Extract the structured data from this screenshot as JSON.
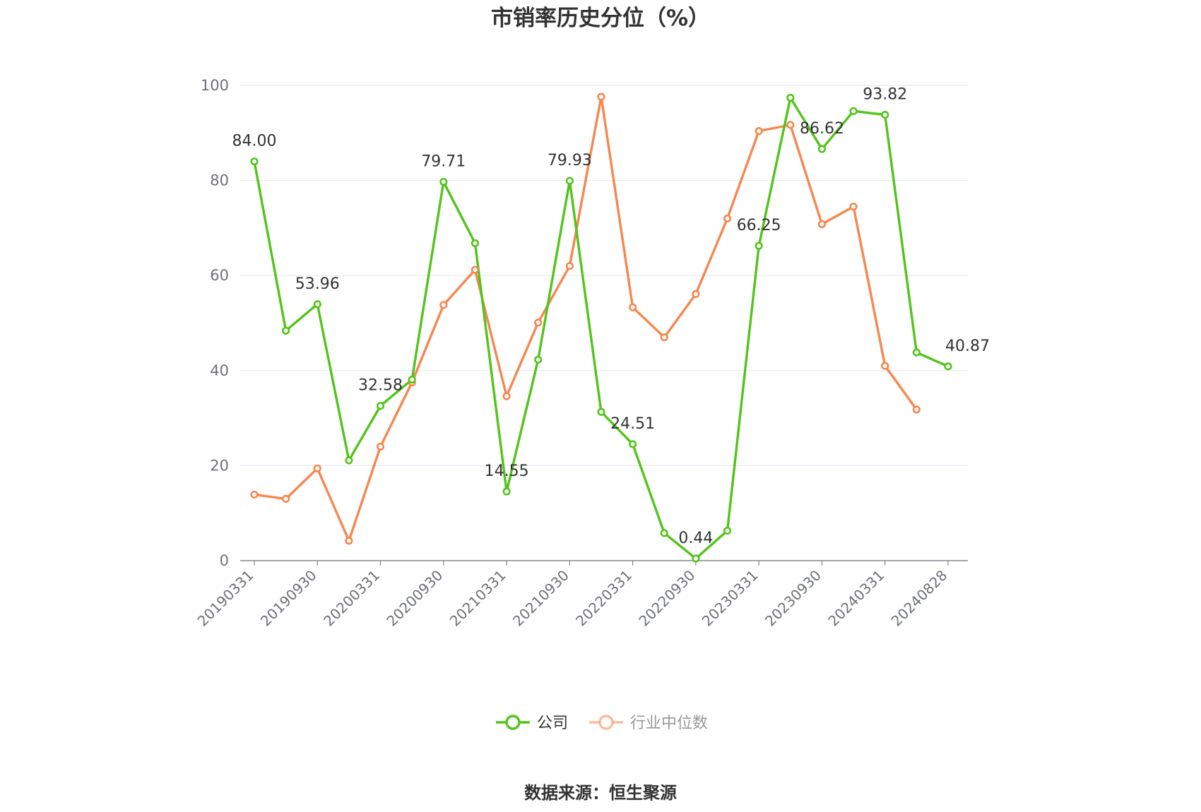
{
  "chart_data": {
    "type": "line",
    "title": "市销率历史分位（%）",
    "xlabel": "",
    "ylabel": "",
    "ylim": [
      0,
      100
    ],
    "yticks": [
      0,
      20,
      40,
      60,
      80,
      100
    ],
    "x": [
      "20190331",
      "20190630",
      "20190930",
      "20191231",
      "20200331",
      "20200630",
      "20200930",
      "20201231",
      "20210331",
      "20210630",
      "20210930",
      "20211231",
      "20220331",
      "20220630",
      "20220930",
      "20221231",
      "20230331",
      "20230630",
      "20230930",
      "20231231",
      "20240331",
      "20240630",
      "20240828"
    ],
    "x_tick_labels": [
      "20190331",
      "20190930",
      "20200331",
      "20200930",
      "20210331",
      "20210930",
      "20220331",
      "20220930",
      "20230331",
      "20230930",
      "20240331",
      "20240828"
    ],
    "grid": true,
    "legend_position": "bottom",
    "series": [
      {
        "name": "公司",
        "color": "#52c41a",
        "values": [
          84.0,
          48.4,
          53.96,
          21.1,
          32.58,
          38.1,
          79.71,
          66.8,
          14.55,
          42.3,
          79.93,
          31.3,
          24.51,
          5.8,
          0.44,
          6.3,
          66.25,
          97.4,
          86.62,
          94.6,
          93.82,
          43.8,
          40.87
        ],
        "labeled_points": {
          "0": "84.00",
          "2": "53.96",
          "4": "32.58",
          "6": "79.71",
          "8": "14.55",
          "10": "79.93",
          "12": "24.51",
          "14": "0.44",
          "16": "66.25",
          "18": "86.62",
          "20": "93.82",
          "22": "40.87"
        }
      },
      {
        "name": "行业中位数",
        "color": "#f5874f",
        "values": [
          13.9,
          13.0,
          19.4,
          4.2,
          24.0,
          37.5,
          53.8,
          61.2,
          34.6,
          50.1,
          62.0,
          97.6,
          53.3,
          47.0,
          56.1,
          72.0,
          90.4,
          91.7,
          70.8,
          74.5,
          41.0,
          31.8,
          null
        ]
      }
    ],
    "source": "数据来源：恒生聚源"
  }
}
